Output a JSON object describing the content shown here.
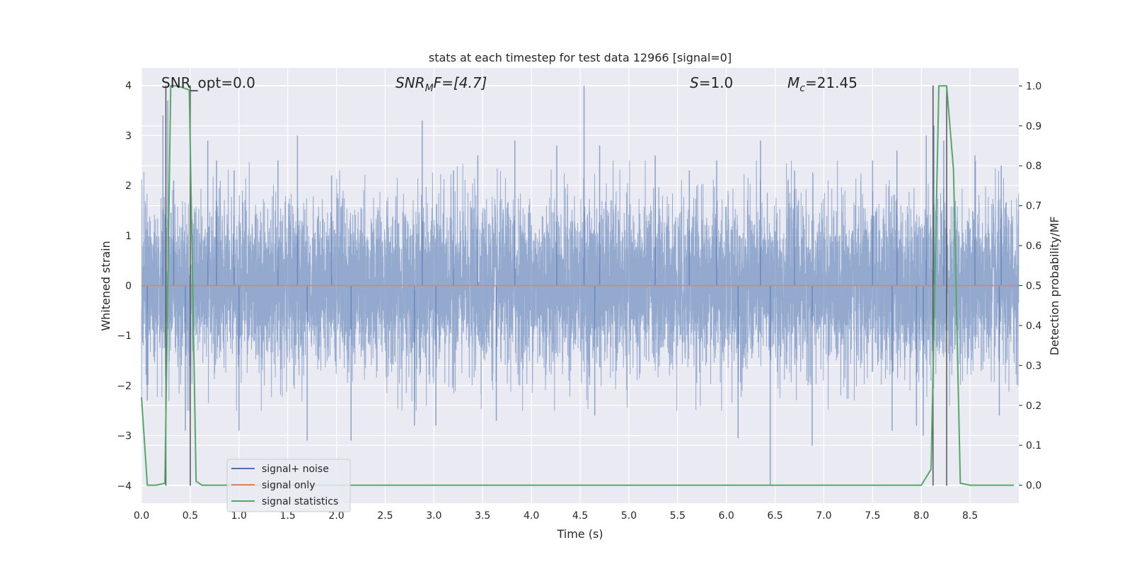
{
  "chart_data": {
    "type": "line",
    "title": "stats at each timestep for test data 12966 [signal=0]",
    "xlabel": "Time (s)",
    "ylabel": "Whitened strain",
    "y2label": "Detection probability/MF",
    "xlim": [
      0.0,
      9.0
    ],
    "ylim": [
      -4.35,
      4.35
    ],
    "y2lim": [
      -0.045,
      1.045
    ],
    "xticks": [
      0.0,
      0.5,
      1.0,
      1.5,
      2.0,
      2.5,
      3.0,
      3.5,
      4.0,
      4.5,
      5.0,
      5.5,
      6.0,
      6.5,
      7.0,
      7.5,
      8.0,
      8.5
    ],
    "xtick_labels": [
      "0.0",
      "0.5",
      "1.0",
      "1.5",
      "2.0",
      "2.5",
      "3.0",
      "3.5",
      "4.0",
      "4.5",
      "5.0",
      "5.5",
      "6.0",
      "6.5",
      "7.0",
      "7.5",
      "8.0",
      "8.5"
    ],
    "yticks": [
      -4,
      -3,
      -2,
      -1,
      0,
      1,
      2,
      3,
      4
    ],
    "ytick_labels": [
      "−4",
      "−3",
      "−2",
      "−1",
      "0",
      "1",
      "2",
      "3",
      "4"
    ],
    "y2ticks": [
      0.0,
      0.1,
      0.2,
      0.3,
      0.4,
      0.5,
      0.6,
      0.7,
      0.8,
      0.9,
      1.0
    ],
    "y2tick_labels": [
      "0.0",
      "0.1",
      "0.2",
      "0.3",
      "0.4",
      "0.5",
      "0.6",
      "0.7",
      "0.8",
      "0.9",
      "1.0"
    ],
    "grid": true,
    "legend_position": "lower-left",
    "background": "#eaeaf2",
    "series": [
      {
        "name": "signal+ noise",
        "color": "#4c72b0",
        "kind": "noise",
        "sample_rate": 1024,
        "band": 1.6,
        "spikes": [
          {
            "x": 0.22,
            "y": 3.4
          },
          {
            "x": 0.27,
            "y": 3.7
          },
          {
            "x": 0.33,
            "y": 2.1
          },
          {
            "x": 0.68,
            "y": 2.9
          },
          {
            "x": 0.77,
            "y": 2.5
          },
          {
            "x": 0.95,
            "y": 2.3
          },
          {
            "x": 1.4,
            "y": 2.5
          },
          {
            "x": 1.6,
            "y": 3.0
          },
          {
            "x": 1.95,
            "y": 2.2
          },
          {
            "x": 2.88,
            "y": 3.3
          },
          {
            "x": 3.2,
            "y": 2.3
          },
          {
            "x": 3.45,
            "y": 2.6
          },
          {
            "x": 3.83,
            "y": 2.9
          },
          {
            "x": 4.26,
            "y": 2.8
          },
          {
            "x": 4.54,
            "y": 4.0
          },
          {
            "x": 4.7,
            "y": 2.8
          },
          {
            "x": 5.27,
            "y": 2.6
          },
          {
            "x": 5.62,
            "y": 2.3
          },
          {
            "x": 5.9,
            "y": 2.5
          },
          {
            "x": 6.35,
            "y": 2.9
          },
          {
            "x": 6.7,
            "y": 2.3
          },
          {
            "x": 7.5,
            "y": 2.5
          },
          {
            "x": 7.75,
            "y": 2.7
          },
          {
            "x": 8.05,
            "y": 3.0
          },
          {
            "x": 8.13,
            "y": 3.2
          },
          {
            "x": 8.23,
            "y": 2.9
          },
          {
            "x": 8.55,
            "y": 2.6
          },
          {
            "x": 8.82,
            "y": 2.4
          },
          {
            "x": 0.06,
            "y": -2.3
          },
          {
            "x": 0.45,
            "y": -2.9
          },
          {
            "x": 1.0,
            "y": -2.9
          },
          {
            "x": 1.7,
            "y": -3.1
          },
          {
            "x": 2.15,
            "y": -3.1
          },
          {
            "x": 2.8,
            "y": -2.8
          },
          {
            "x": 3.02,
            "y": -2.8
          },
          {
            "x": 3.64,
            "y": -2.7
          },
          {
            "x": 4.65,
            "y": -2.6
          },
          {
            "x": 6.12,
            "y": -3.05
          },
          {
            "x": 6.45,
            "y": -4.0
          },
          {
            "x": 6.88,
            "y": -3.2
          },
          {
            "x": 7.7,
            "y": -2.9
          },
          {
            "x": 7.95,
            "y": -2.8
          },
          {
            "x": 8.02,
            "y": -3.0
          },
          {
            "x": 8.8,
            "y": -2.6
          }
        ]
      },
      {
        "name": "signal only",
        "color": "#dd8452",
        "x": [
          0.0,
          9.0
        ],
        "y": [
          0.0,
          0.0
        ]
      },
      {
        "name": "signal statistics",
        "color": "#55a868",
        "axis": "right",
        "x": [
          0.0,
          0.06,
          0.15,
          0.24,
          0.3,
          0.37,
          0.49,
          0.56,
          0.62,
          5.0,
          8.0,
          8.1,
          8.18,
          8.26,
          8.33,
          8.4,
          8.5,
          8.95
        ],
        "y": [
          0.22,
          0.0,
          0.0,
          0.005,
          1.0,
          1.0,
          0.99,
          0.01,
          0.0,
          0.0,
          0.0,
          0.04,
          1.0,
          1.0,
          0.79,
          0.005,
          0.0,
          0.0
        ]
      }
    ],
    "vertical_lines": [
      0.25,
      0.5,
      8.12,
      8.26
    ],
    "vertical_lines_color": "#555555"
  },
  "annotations": {
    "snr_opt": "SNR_opt=0.0",
    "snr_mf_base": "SNR",
    "snr_mf_sub": "M",
    "snr_mf_rest": "F=[4.7]",
    "s_italic": "S",
    "s_rest": "=1.0",
    "mc_base": "M",
    "mc_sub": "c",
    "mc_rest": "=21.45"
  }
}
